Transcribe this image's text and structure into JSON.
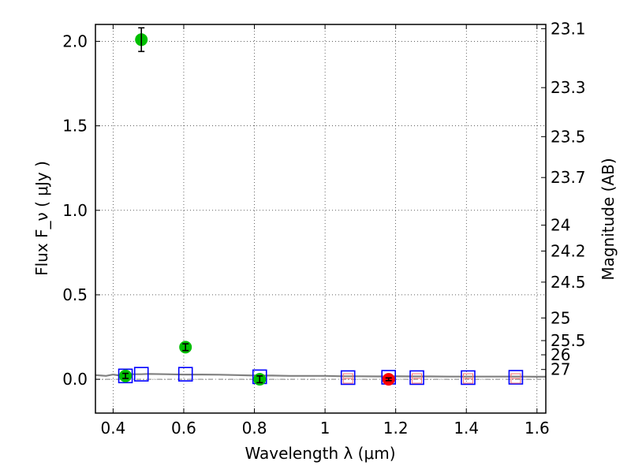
{
  "chart_data": {
    "type": "scatter",
    "xlabel": "Wavelength  λ (μm)",
    "ylabel": "Flux  F_ν  ( μJy )",
    "ylabel_right": "Magnitude (AB)",
    "xlim": [
      0.35,
      1.625
    ],
    "ylim": [
      -0.2,
      2.1
    ],
    "grid": true,
    "x_ticks": [
      {
        "value": 0.4,
        "label": "0.4"
      },
      {
        "value": 0.6,
        "label": "0.6"
      },
      {
        "value": 0.8,
        "label": "0.8"
      },
      {
        "value": 1.0,
        "label": "1"
      },
      {
        "value": 1.2,
        "label": "1.2"
      },
      {
        "value": 1.4,
        "label": "1.4"
      },
      {
        "value": 1.6,
        "label": "1.6"
      }
    ],
    "y_ticks": [
      {
        "value": 0.0,
        "label": "0.0"
      },
      {
        "value": 0.5,
        "label": "0.5"
      },
      {
        "value": 1.0,
        "label": "1.0"
      },
      {
        "value": 1.5,
        "label": "1.5"
      },
      {
        "value": 2.0,
        "label": "2.0"
      }
    ],
    "mag_ticks": [
      {
        "flux": 2.075,
        "label": "23.1"
      },
      {
        "flux": 1.726,
        "label": "23.3"
      },
      {
        "flux": 1.436,
        "label": "23.5"
      },
      {
        "flux": 1.194,
        "label": "23.7"
      },
      {
        "flux": 0.912,
        "label": "24"
      },
      {
        "flux": 0.759,
        "label": "24.2"
      },
      {
        "flux": 0.575,
        "label": "24.5"
      },
      {
        "flux": 0.363,
        "label": "25"
      },
      {
        "flux": 0.229,
        "label": "25.5"
      },
      {
        "flux": 0.145,
        "label": "26"
      },
      {
        "flux": 0.058,
        "label": "27"
      }
    ],
    "detections": {
      "color": "#00bf00",
      "points": [
        {
          "x": 0.435,
          "y": 0.02,
          "err": 0.015
        },
        {
          "x": 0.48,
          "y": 2.01,
          "err": 0.07
        },
        {
          "x": 0.605,
          "y": 0.19,
          "err": 0.02
        },
        {
          "x": 0.815,
          "y": 0.0,
          "err": 0.02
        }
      ]
    },
    "nondetections": {
      "color": "#ff0000",
      "points": [
        {
          "x": 1.18,
          "y": 0.0,
          "err": 0.008
        }
      ]
    },
    "model_photometry": {
      "color": "#0000ff",
      "points": [
        {
          "x": 0.435,
          "y": 0.02
        },
        {
          "x": 0.48,
          "y": 0.03
        },
        {
          "x": 0.605,
          "y": 0.03
        },
        {
          "x": 0.815,
          "y": 0.015
        },
        {
          "x": 1.065,
          "y": 0.01
        },
        {
          "x": 1.18,
          "y": 0.012
        },
        {
          "x": 1.26,
          "y": 0.01
        },
        {
          "x": 1.405,
          "y": 0.01
        },
        {
          "x": 1.54,
          "y": 0.012
        }
      ]
    },
    "upper_limit_markers": {
      "color": "#ff6f6f",
      "x": [
        1.065,
        1.26,
        1.405,
        1.54
      ]
    },
    "model_spectrum": {
      "color": "#808080",
      "x": [
        0.35,
        0.38,
        0.4,
        0.42,
        0.45,
        0.48,
        0.5,
        0.55,
        0.6,
        0.65,
        0.7,
        0.75,
        0.8,
        0.85,
        0.9,
        0.95,
        1.0,
        1.05,
        1.1,
        1.15,
        1.2,
        1.25,
        1.3,
        1.35,
        1.4,
        1.45,
        1.5,
        1.55,
        1.6,
        1.625
      ],
      "y": [
        0.025,
        0.02,
        0.028,
        0.022,
        0.03,
        0.03,
        0.032,
        0.03,
        0.028,
        0.028,
        0.027,
        0.025,
        0.022,
        0.022,
        0.02,
        0.02,
        0.02,
        0.018,
        0.018,
        0.017,
        0.018,
        0.017,
        0.017,
        0.016,
        0.016,
        0.016,
        0.016,
        0.016,
        0.015,
        0.015
      ]
    },
    "zero_line": {
      "y": 0.0,
      "style": "dash-dot",
      "color": "#808080"
    }
  }
}
